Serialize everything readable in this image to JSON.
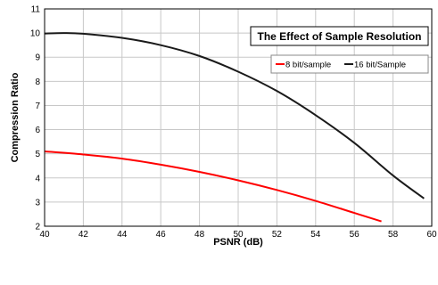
{
  "chart_data": {
    "type": "line",
    "title": "The Effect of Sample Resolution",
    "xlabel": "PSNR (dB)",
    "ylabel": "Compression Ratio",
    "xlim": [
      40,
      60
    ],
    "ylim": [
      2,
      11
    ],
    "xticks": [
      "40",
      "42",
      "44",
      "46",
      "48",
      "50",
      "52",
      "54",
      "56",
      "58",
      "60"
    ],
    "yticks": [
      "2",
      "3",
      "4",
      "5",
      "6",
      "7",
      "8",
      "9",
      "10",
      "11"
    ],
    "grid": true,
    "legend_position": "top-right",
    "series": [
      {
        "name": "8 bit/sample",
        "color": "#ff0000",
        "x": [
          40,
          42,
          44,
          46,
          48,
          50,
          52,
          54,
          56,
          57.4
        ],
        "values": [
          5.1,
          4.97,
          4.8,
          4.55,
          4.25,
          3.9,
          3.5,
          3.05,
          2.55,
          2.2
        ]
      },
      {
        "name": "16 bit/Sample",
        "color": "#1a1a1a",
        "x": [
          40,
          41,
          42,
          44,
          46,
          48,
          50,
          52,
          54,
          56,
          58,
          59.6
        ],
        "values": [
          9.98,
          10.0,
          9.97,
          9.8,
          9.5,
          9.05,
          8.4,
          7.6,
          6.6,
          5.45,
          4.1,
          3.15
        ]
      }
    ]
  }
}
